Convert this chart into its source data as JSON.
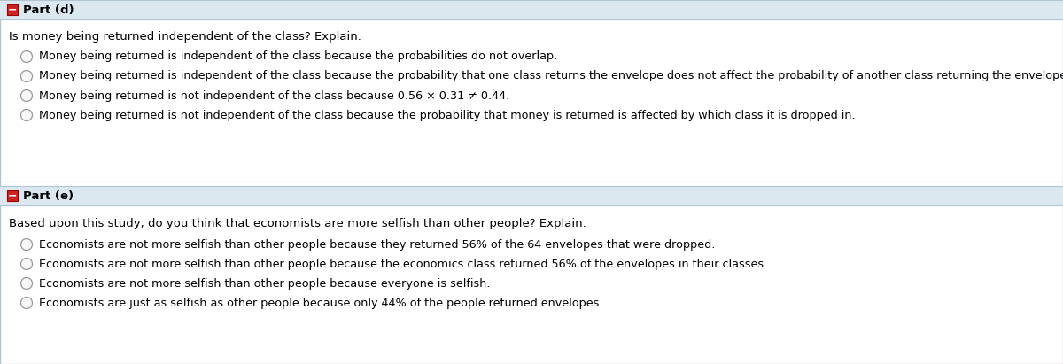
{
  "bg_color": "#ffffff",
  "header_bg": "#dce8f0",
  "header_border": "#b0c4d4",
  "body_text_color": "#000000",
  "section_d_header": "Part (d)",
  "section_e_header": "Part (e)",
  "section_d_question": "Is money being returned independent of the class? Explain.",
  "section_e_question": "Based upon this study, do you think that economists are more selfish than other people? Explain.",
  "section_d_options": [
    "Money being returned is independent of the class because the probabilities do not overlap.",
    "Money being returned is independent of the class because the probability that one class returns the envelope does not affect the probability of another class returning the envelope.",
    "Money being returned is not independent of the class because 0.56 × 0.31 ≠ 0.44.",
    "Money being returned is not independent of the class because the probability that money is returned is affected by which class it is dropped in."
  ],
  "section_e_options": [
    "Economists are not more selfish than other people because they returned 56% of the 64 envelopes that were dropped.",
    "Economists are not more selfish than other people because the economics class returned 56% of the envelopes in their classes.",
    "Economists are not more selfish than other people because everyone is selfish.",
    "Economists are just as selfish as other people because only 44% of the people returned envelopes."
  ],
  "icon_box_color": "#cc2222",
  "icon_text_color": "#ffffff",
  "radio_edge": "#999999",
  "radio_face": "#f8f8f8",
  "figwidth": 12.0,
  "figheight": 4.11,
  "dpi": 100
}
